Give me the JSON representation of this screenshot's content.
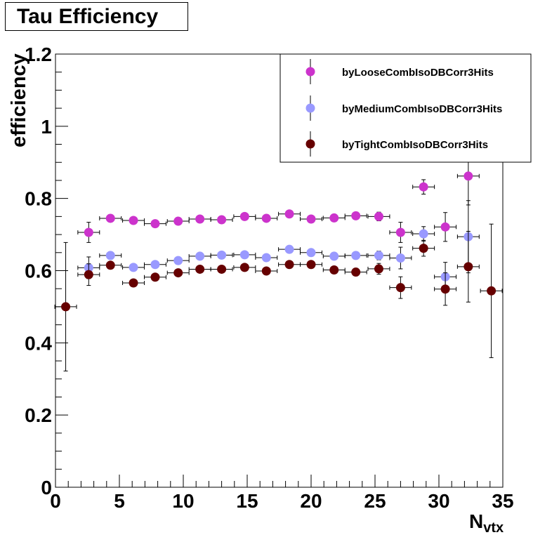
{
  "title": "Tau Efficiency",
  "chart_data": {
    "type": "scatter",
    "xlabel": "N",
    "xlabel_sub": "vtx",
    "ylabel": "efficiency",
    "xlim": [
      0,
      35
    ],
    "ylim": [
      0,
      1.2
    ],
    "xticks": [
      0,
      5,
      10,
      15,
      20,
      25,
      30,
      35
    ],
    "xtick_labels": [
      "0",
      "5",
      "10",
      "15",
      "20",
      "25",
      "30",
      "35"
    ],
    "yticks": [
      0,
      0.2,
      0.4,
      0.6,
      0.8,
      1,
      1.2
    ],
    "ytick_labels": [
      "0",
      "0.2",
      "0.4",
      "0.6",
      "0.8",
      "1",
      "1.2"
    ],
    "grid": false,
    "legend_position": "top-right",
    "series": [
      {
        "name": "byLooseCombIsoDBCorr3Hits",
        "color": "#cc33cc",
        "x": [
          2.6,
          4.3,
          6.1,
          7.8,
          9.6,
          11.3,
          13.0,
          14.8,
          16.5,
          18.3,
          20.0,
          21.8,
          23.5,
          25.3,
          27.0,
          28.8,
          30.5,
          32.3
        ],
        "y": [
          0.706,
          0.745,
          0.739,
          0.73,
          0.737,
          0.743,
          0.741,
          0.75,
          0.745,
          0.757,
          0.743,
          0.746,
          0.752,
          0.75,
          0.706,
          0.832,
          0.721,
          0.862
        ],
        "yerr": [
          0.028,
          0.01,
          0.008,
          0.008,
          0.008,
          0.008,
          0.008,
          0.008,
          0.008,
          0.008,
          0.009,
          0.01,
          0.01,
          0.012,
          0.028,
          0.02,
          0.04,
          0.08
        ]
      },
      {
        "name": "byMediumCombIsoDBCorr3Hits",
        "color": "#9999ff",
        "x": [
          2.6,
          4.3,
          6.1,
          7.8,
          9.6,
          11.3,
          13.0,
          14.8,
          16.5,
          18.3,
          20.0,
          21.8,
          23.5,
          25.3,
          27.0,
          28.8,
          30.5,
          32.3
        ],
        "y": [
          0.608,
          0.642,
          0.609,
          0.617,
          0.628,
          0.64,
          0.643,
          0.644,
          0.636,
          0.659,
          0.65,
          0.64,
          0.642,
          0.642,
          0.635,
          0.702,
          0.583,
          0.694
        ],
        "yerr": [
          0.03,
          0.01,
          0.008,
          0.008,
          0.008,
          0.008,
          0.008,
          0.008,
          0.008,
          0.008,
          0.009,
          0.01,
          0.01,
          0.012,
          0.03,
          0.02,
          0.04,
          0.1
        ]
      },
      {
        "name": "byTightCombIsoDBCorr3Hits",
        "color": "#660000",
        "x": [
          0.8,
          2.6,
          4.3,
          6.1,
          7.8,
          9.6,
          11.3,
          13.0,
          14.8,
          16.5,
          18.3,
          20.0,
          21.8,
          23.5,
          25.3,
          27.0,
          28.8,
          30.5,
          32.3,
          34.1
        ],
        "y": [
          0.5,
          0.589,
          0.615,
          0.566,
          0.582,
          0.594,
          0.604,
          0.604,
          0.609,
          0.599,
          0.617,
          0.617,
          0.602,
          0.596,
          0.605,
          0.553,
          0.662,
          0.549,
          0.611,
          0.544
        ],
        "yerr": [
          0.178,
          0.03,
          0.01,
          0.008,
          0.008,
          0.008,
          0.008,
          0.008,
          0.008,
          0.008,
          0.008,
          0.009,
          0.01,
          0.01,
          0.015,
          0.03,
          0.022,
          0.045,
          0.098,
          0.185
        ]
      }
    ]
  }
}
